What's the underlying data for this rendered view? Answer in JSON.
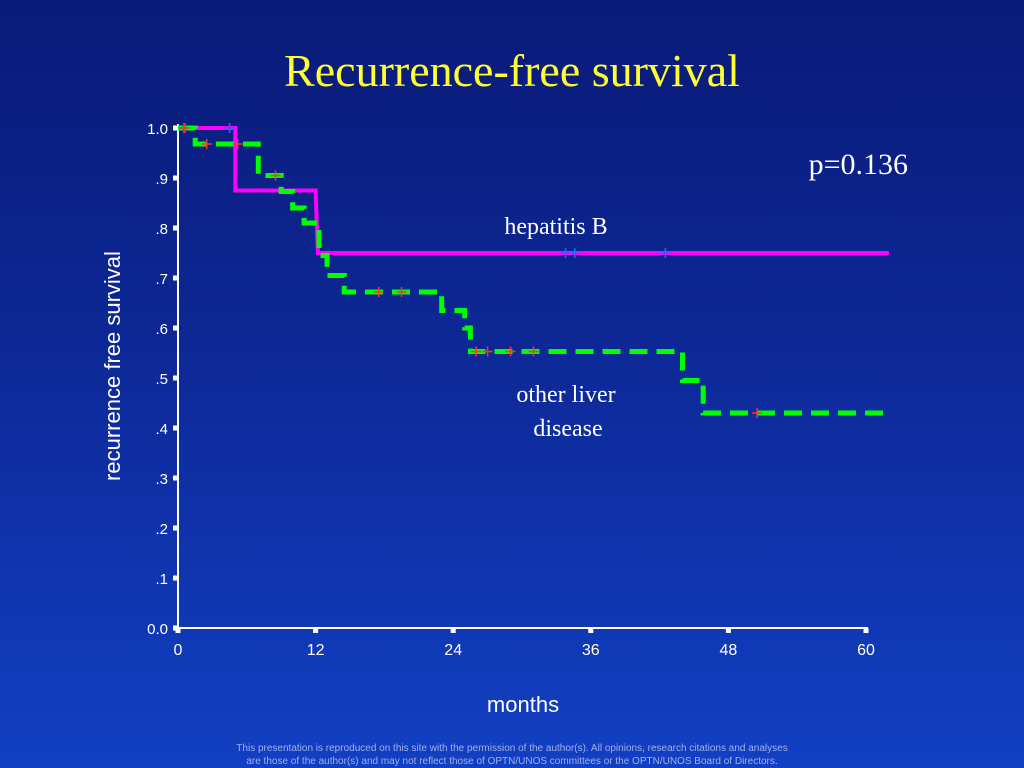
{
  "slide": {
    "title": "Recurrence-free survival",
    "footer_line1": "This presentation is reproduced on this site with the permission of the author(s).  All opinions, research citations and analyses",
    "footer_line2": "are those of the author(s) and may not reflect those of OPTN/UNOS committees or the OPTN/UNOS Board of Directors."
  },
  "chart_data": {
    "type": "line",
    "title": "Recurrence-free survival",
    "xlabel": "months",
    "ylabel": "recurrence free survival",
    "xlim": [
      0,
      60
    ],
    "ylim": [
      0,
      1
    ],
    "x_ticks": [
      0,
      12,
      24,
      36,
      48,
      60
    ],
    "x_tick_labels": [
      "0",
      "12",
      "24",
      "36",
      "48",
      "60"
    ],
    "y_ticks": [
      0,
      0.1,
      0.2,
      0.3,
      0.4,
      0.5,
      0.6,
      0.7,
      0.8,
      0.9,
      1.0
    ],
    "y_tick_labels": [
      "0.0",
      ".1",
      ".2",
      ".3",
      ".4",
      ".5",
      ".6",
      ".7",
      ".8",
      ".9",
      "1.0"
    ],
    "grid": false,
    "annotations": {
      "p_value": "p=0.136",
      "hepatitis_b_label": "hepatitis B",
      "other_label_line1": "other liver",
      "other_label_line2": "disease"
    },
    "series": [
      {
        "name": "hepatitis B",
        "style": "step",
        "color": "#ff00ff",
        "dash": false,
        "x": [
          0,
          5,
          5,
          12,
          12.2,
          62
        ],
        "y": [
          1.0,
          1.0,
          0.875,
          0.875,
          0.75,
          0.75
        ],
        "censor_x": [
          0.5,
          4.5,
          33.8,
          34.6,
          42.5
        ],
        "censor_y": [
          1.0,
          1.0,
          0.75,
          0.75,
          0.75
        ],
        "censor_color": "#2266ff"
      },
      {
        "name": "other liver disease",
        "style": "step",
        "color": "#00ff00",
        "dash": true,
        "points": [
          [
            0,
            1.0
          ],
          [
            1.5,
            1.0
          ],
          [
            1.5,
            0.968
          ],
          [
            7,
            0.968
          ],
          [
            7,
            0.905
          ],
          [
            9,
            0.905
          ],
          [
            9,
            0.873
          ],
          [
            10,
            0.873
          ],
          [
            10,
            0.84
          ],
          [
            11,
            0.84
          ],
          [
            11,
            0.81
          ],
          [
            12.3,
            0.81
          ],
          [
            12.3,
            0.745
          ],
          [
            13,
            0.745
          ],
          [
            13,
            0.705
          ],
          [
            14.5,
            0.705
          ],
          [
            14.5,
            0.672
          ],
          [
            23,
            0.672
          ],
          [
            23,
            0.635
          ],
          [
            25,
            0.635
          ],
          [
            25,
            0.6
          ],
          [
            25.5,
            0.6
          ],
          [
            25.5,
            0.553
          ],
          [
            44,
            0.553
          ],
          [
            44,
            0.495
          ],
          [
            45.8,
            0.495
          ],
          [
            45.8,
            0.43
          ],
          [
            62,
            0.43
          ]
        ],
        "censor_x": [
          0.6,
          2.5,
          5.2,
          8.5,
          17.5,
          19.5,
          26,
          27,
          29,
          31,
          50.5
        ],
        "censor_y": [
          1.0,
          0.968,
          0.968,
          0.905,
          0.672,
          0.672,
          0.553,
          0.553,
          0.553,
          0.553,
          0.43
        ],
        "censor_color": "#ff3030"
      }
    ]
  }
}
